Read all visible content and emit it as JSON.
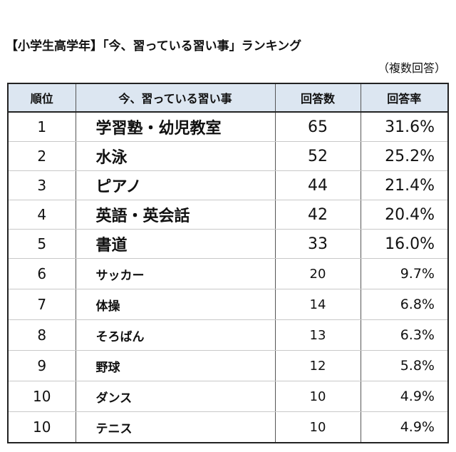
{
  "title": "【小学生高学年】「今、習っている習い事」ランキング",
  "subtitle": "（複数回答）",
  "table": {
    "headers": {
      "rank": "順位",
      "item": "今、習っている習い事",
      "count": "回答数",
      "rate": "回答率"
    }
  },
  "chart_data": {
    "type": "table",
    "title": "【小学生高学年】「今、習っている習い事」ランキング",
    "subtitle": "（複数回答）",
    "columns": [
      "順位",
      "今、習っている習い事",
      "回答数",
      "回答率"
    ],
    "rows": [
      {
        "rank": "1",
        "item": "学習塾・幼児教室",
        "count": "65",
        "rate": "31.6%"
      },
      {
        "rank": "2",
        "item": "水泳",
        "count": "52",
        "rate": "25.2%"
      },
      {
        "rank": "3",
        "item": "ピアノ",
        "count": "44",
        "rate": "21.4%"
      },
      {
        "rank": "4",
        "item": "英語・英会話",
        "count": "42",
        "rate": "20.4%"
      },
      {
        "rank": "5",
        "item": "書道",
        "count": "33",
        "rate": "16.0%"
      },
      {
        "rank": "6",
        "item": "サッカー",
        "count": "20",
        "rate": "9.7%"
      },
      {
        "rank": "7",
        "item": "体操",
        "count": "14",
        "rate": "6.8%"
      },
      {
        "rank": "8",
        "item": "そろばん",
        "count": "13",
        "rate": "6.3%"
      },
      {
        "rank": "9",
        "item": "野球",
        "count": "12",
        "rate": "5.8%"
      },
      {
        "rank": "10",
        "item": "ダンス",
        "count": "10",
        "rate": "4.9%"
      },
      {
        "rank": "10",
        "item": "テニス",
        "count": "10",
        "rate": "4.9%"
      }
    ],
    "header_color": "#dce6f1"
  }
}
